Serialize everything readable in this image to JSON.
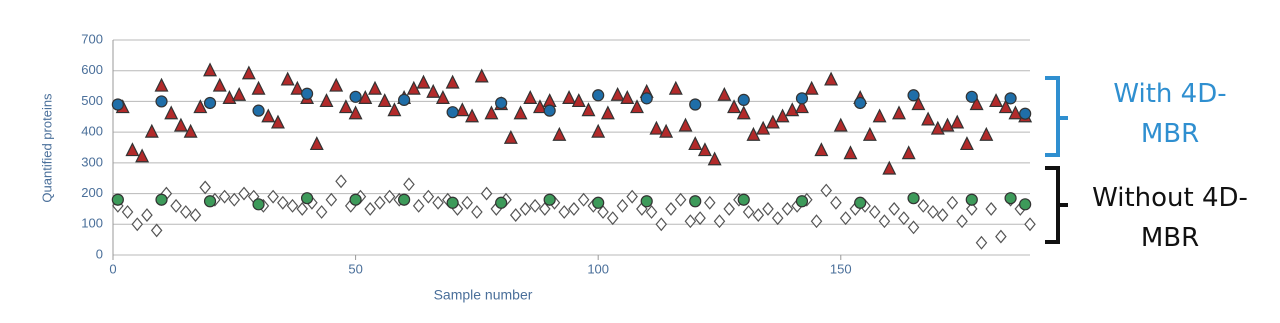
{
  "chart_data": {
    "type": "scatter",
    "x_label": "Sample number",
    "y_label": "Quantified proteins",
    "xlim": [
      0,
      189
    ],
    "xticks": [
      0,
      50,
      100,
      150
    ],
    "ylim": [
      0,
      700
    ],
    "yticks": [
      0,
      100,
      200,
      300,
      400,
      500,
      600,
      700
    ],
    "grid": true,
    "annotations": [
      {
        "text": "With 4D-MBR",
        "color": "#2f8fd0"
      },
      {
        "text": "Without 4D-MBR",
        "color": "#111111"
      }
    ],
    "series": [
      {
        "marker": "triangle",
        "color": "#b22a2a",
        "x": [
          2,
          4,
          6,
          8,
          10,
          12,
          14,
          16,
          18,
          20,
          22,
          24,
          26,
          28,
          30,
          32,
          34,
          36,
          38,
          40,
          42,
          44,
          46,
          48,
          50,
          52,
          54,
          56,
          58,
          60,
          62,
          64,
          66,
          68,
          70,
          72,
          74,
          76,
          78,
          80,
          82,
          84,
          86,
          88,
          90,
          92,
          94,
          96,
          98,
          100,
          102,
          104,
          106,
          108,
          110,
          112,
          114,
          116,
          118,
          120,
          122,
          124,
          126,
          128,
          130,
          132,
          134,
          136,
          138,
          140,
          142,
          144,
          146,
          148,
          150,
          152,
          154,
          156,
          158,
          160,
          162,
          164,
          166,
          168,
          170,
          172,
          174,
          176,
          178,
          180,
          182,
          184,
          186,
          188
        ],
        "values": [
          480,
          340,
          320,
          400,
          550,
          460,
          420,
          400,
          480,
          600,
          550,
          510,
          520,
          590,
          540,
          450,
          430,
          570,
          540,
          510,
          360,
          500,
          550,
          480,
          460,
          510,
          540,
          500,
          470,
          510,
          540,
          560,
          530,
          510,
          560,
          470,
          450,
          580,
          460,
          490,
          380,
          460,
          510,
          480,
          500,
          390,
          510,
          500,
          470,
          400,
          460,
          520,
          510,
          480,
          530,
          410,
          400,
          540,
          420,
          360,
          340,
          310,
          520,
          480,
          460,
          390,
          410,
          430,
          450,
          470,
          480,
          540,
          340,
          570,
          420,
          330,
          510,
          390,
          450,
          280,
          460,
          330,
          490,
          440,
          410,
          420,
          430,
          360,
          490,
          390,
          500,
          480,
          460,
          450
        ]
      },
      {
        "marker": "circle",
        "color": "#1f6ea8",
        "x": [
          1,
          10,
          20,
          30,
          40,
          50,
          60,
          70,
          80,
          90,
          100,
          110,
          120,
          130,
          142,
          154,
          165,
          177,
          185,
          188
        ],
        "values": [
          490,
          500,
          495,
          470,
          525,
          515,
          505,
          465,
          495,
          470,
          520,
          510,
          490,
          505,
          510,
          495,
          520,
          515,
          510,
          460
        ]
      },
      {
        "marker": "diamond",
        "color": "#ffffff",
        "x": [
          1,
          3,
          5,
          7,
          9,
          11,
          13,
          15,
          17,
          19,
          21,
          23,
          25,
          27,
          29,
          31,
          33,
          35,
          37,
          39,
          41,
          43,
          45,
          47,
          49,
          51,
          53,
          55,
          57,
          59,
          61,
          63,
          65,
          67,
          69,
          71,
          73,
          75,
          77,
          79,
          81,
          83,
          85,
          87,
          89,
          91,
          93,
          95,
          97,
          99,
          101,
          103,
          105,
          107,
          109,
          111,
          113,
          115,
          117,
          119,
          121,
          123,
          125,
          127,
          129,
          131,
          133,
          135,
          137,
          139,
          141,
          143,
          145,
          147,
          149,
          151,
          153,
          155,
          157,
          159,
          161,
          163,
          165,
          167,
          169,
          171,
          173,
          175,
          177,
          179,
          181,
          183,
          185,
          187,
          189
        ],
        "values": [
          160,
          140,
          100,
          130,
          80,
          200,
          160,
          140,
          130,
          220,
          180,
          190,
          180,
          200,
          190,
          160,
          190,
          170,
          160,
          150,
          170,
          140,
          180,
          240,
          160,
          190,
          150,
          170,
          190,
          180,
          230,
          160,
          190,
          170,
          180,
          150,
          170,
          140,
          200,
          150,
          180,
          130,
          150,
          160,
          150,
          170,
          140,
          150,
          180,
          160,
          140,
          120,
          160,
          190,
          150,
          140,
          100,
          150,
          180,
          110,
          120,
          170,
          110,
          150,
          180,
          140,
          130,
          150,
          120,
          150,
          160,
          180,
          110,
          210,
          170,
          120,
          150,
          160,
          140,
          110,
          150,
          120,
          90,
          160,
          140,
          130,
          170,
          110,
          150,
          40,
          150,
          60,
          180,
          150,
          100
        ]
      },
      {
        "marker": "circle",
        "color": "#3d9a5a",
        "x": [
          1,
          10,
          20,
          30,
          40,
          50,
          60,
          70,
          80,
          90,
          100,
          110,
          120,
          130,
          142,
          154,
          165,
          177,
          185,
          188
        ],
        "values": [
          180,
          180,
          175,
          165,
          185,
          180,
          180,
          170,
          170,
          180,
          170,
          175,
          175,
          180,
          175,
          170,
          185,
          180,
          185,
          165
        ]
      }
    ]
  }
}
